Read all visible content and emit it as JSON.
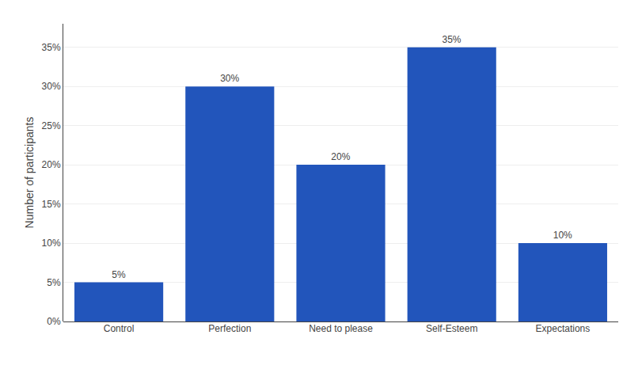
{
  "chart_data": {
    "type": "bar",
    "categories": [
      "Control",
      "Perfection",
      "Need to please",
      "Self-Esteem",
      "Expectations"
    ],
    "values": [
      5,
      30,
      20,
      35,
      10
    ],
    "value_labels": [
      "5%",
      "30%",
      "20%",
      "35%",
      "10%"
    ],
    "data_labels": true,
    "color": "#2255bb",
    "ylabel": "Number of participants",
    "ylim": [
      0,
      38
    ],
    "yticks": [
      {
        "value": 0,
        "label": "0%"
      },
      {
        "value": 5,
        "label": "5%"
      },
      {
        "value": 10,
        "label": "10%"
      },
      {
        "value": 15,
        "label": "15%"
      },
      {
        "value": 20,
        "label": "20%"
      },
      {
        "value": 25,
        "label": "25%"
      },
      {
        "value": 30,
        "label": "30%"
      },
      {
        "value": 35,
        "label": "35%"
      }
    ],
    "grid": true
  }
}
